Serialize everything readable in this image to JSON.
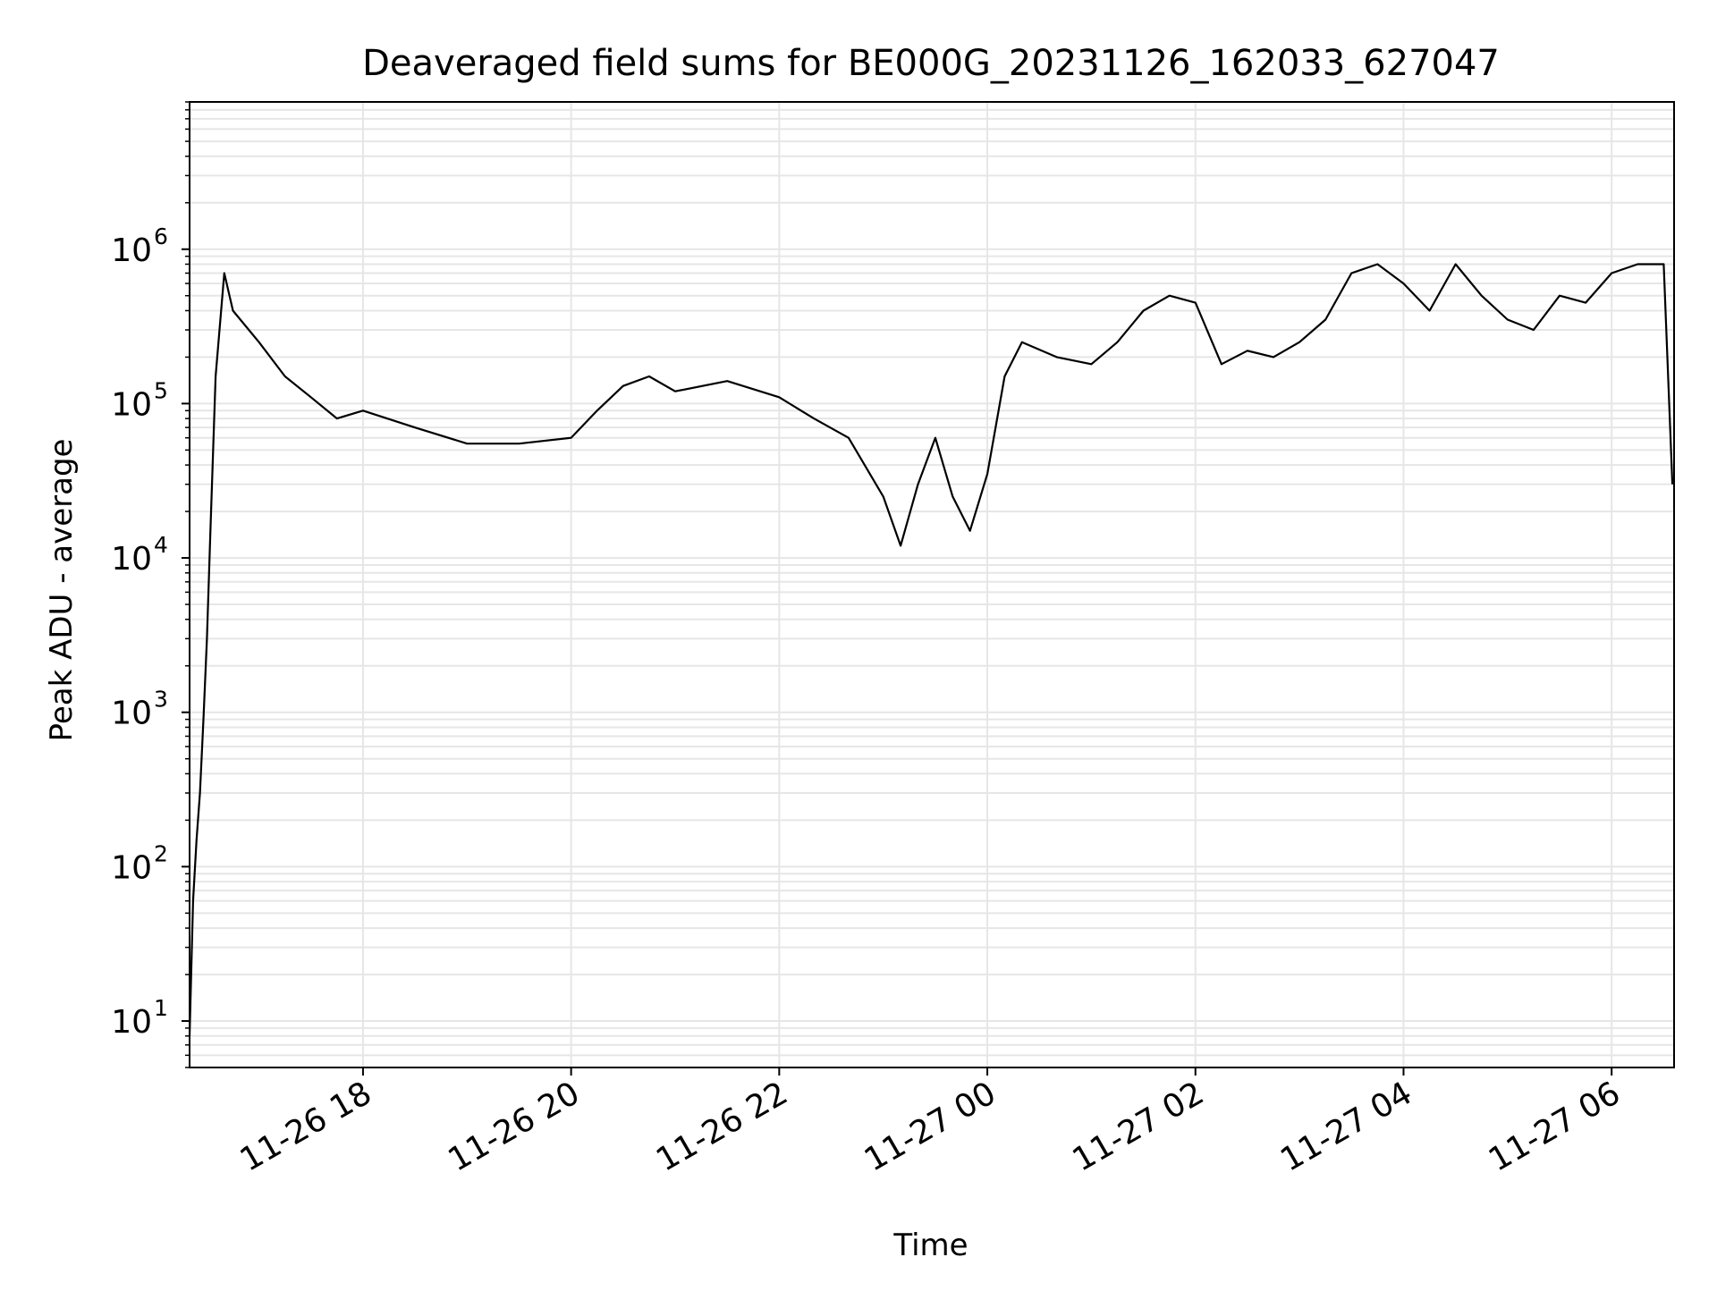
{
  "chart_data": {
    "type": "line",
    "title": "Deaveraged field sums for BE000G_20231126_162033_627047",
    "xlabel": "Time",
    "ylabel": "Peak ADU - average",
    "yscale": "log",
    "grid": true,
    "legend": "none",
    "xlim": [
      "2023-11-26 16:20",
      "2023-11-27 06:36"
    ],
    "ylim": [
      5,
      9000000
    ],
    "x_ticks": [
      {
        "t": "2023-11-26 18:00",
        "label": "11-26 18"
      },
      {
        "t": "2023-11-26 20:00",
        "label": "11-26 20"
      },
      {
        "t": "2023-11-26 22:00",
        "label": "11-26 22"
      },
      {
        "t": "2023-11-27 00:00",
        "label": "11-27 00"
      },
      {
        "t": "2023-11-27 02:00",
        "label": "11-27 02"
      },
      {
        "t": "2023-11-27 04:00",
        "label": "11-27 04"
      },
      {
        "t": "2023-11-27 06:00",
        "label": "11-27 06"
      }
    ],
    "y_ticks": [
      {
        "value": 10,
        "base": "10",
        "exp": "1"
      },
      {
        "value": 100,
        "base": "10",
        "exp": "2"
      },
      {
        "value": 1000,
        "base": "10",
        "exp": "3"
      },
      {
        "value": 10000,
        "base": "10",
        "exp": "4"
      },
      {
        "value": 100000,
        "base": "10",
        "exp": "5"
      },
      {
        "value": 1000000,
        "base": "10",
        "exp": "6"
      }
    ],
    "series": [
      {
        "color": "#000000",
        "points": [
          [
            "2023-11-26 16:20",
            8
          ],
          [
            "2023-11-26 16:22",
            60
          ],
          [
            "2023-11-26 16:24",
            150
          ],
          [
            "2023-11-26 16:26",
            300
          ],
          [
            "2023-11-26 16:28",
            900
          ],
          [
            "2023-11-26 16:30",
            3000
          ],
          [
            "2023-11-26 16:32",
            15000
          ],
          [
            "2023-11-26 16:35",
            150000
          ],
          [
            "2023-11-26 16:40",
            700000
          ],
          [
            "2023-11-26 16:45",
            400000
          ],
          [
            "2023-11-26 17:00",
            250000
          ],
          [
            "2023-11-26 17:15",
            150000
          ],
          [
            "2023-11-26 17:30",
            110000
          ],
          [
            "2023-11-26 17:45",
            80000
          ],
          [
            "2023-11-26 18:00",
            90000
          ],
          [
            "2023-11-26 18:30",
            70000
          ],
          [
            "2023-11-26 19:00",
            55000
          ],
          [
            "2023-11-26 19:30",
            55000
          ],
          [
            "2023-11-26 20:00",
            60000
          ],
          [
            "2023-11-26 20:15",
            90000
          ],
          [
            "2023-11-26 20:30",
            130000
          ],
          [
            "2023-11-26 20:45",
            150000
          ],
          [
            "2023-11-26 21:00",
            120000
          ],
          [
            "2023-11-26 21:30",
            140000
          ],
          [
            "2023-11-26 22:00",
            110000
          ],
          [
            "2023-11-26 22:20",
            80000
          ],
          [
            "2023-11-26 22:40",
            60000
          ],
          [
            "2023-11-26 23:00",
            25000
          ],
          [
            "2023-11-26 23:10",
            12000
          ],
          [
            "2023-11-26 23:20",
            30000
          ],
          [
            "2023-11-26 23:30",
            60000
          ],
          [
            "2023-11-26 23:40",
            25000
          ],
          [
            "2023-11-26 23:50",
            15000
          ],
          [
            "2023-11-27 00:00",
            35000
          ],
          [
            "2023-11-27 00:10",
            150000
          ],
          [
            "2023-11-27 00:20",
            250000
          ],
          [
            "2023-11-27 00:40",
            200000
          ],
          [
            "2023-11-27 01:00",
            180000
          ],
          [
            "2023-11-27 01:15",
            250000
          ],
          [
            "2023-11-27 01:30",
            400000
          ],
          [
            "2023-11-27 01:45",
            500000
          ],
          [
            "2023-11-27 02:00",
            450000
          ],
          [
            "2023-11-27 02:15",
            180000
          ],
          [
            "2023-11-27 02:30",
            220000
          ],
          [
            "2023-11-27 02:45",
            200000
          ],
          [
            "2023-11-27 03:00",
            250000
          ],
          [
            "2023-11-27 03:15",
            350000
          ],
          [
            "2023-11-27 03:30",
            700000
          ],
          [
            "2023-11-27 03:45",
            800000
          ],
          [
            "2023-11-27 04:00",
            600000
          ],
          [
            "2023-11-27 04:15",
            400000
          ],
          [
            "2023-11-27 04:30",
            800000
          ],
          [
            "2023-11-27 04:45",
            500000
          ],
          [
            "2023-11-27 05:00",
            350000
          ],
          [
            "2023-11-27 05:15",
            300000
          ],
          [
            "2023-11-27 05:30",
            500000
          ],
          [
            "2023-11-27 05:45",
            450000
          ],
          [
            "2023-11-27 06:00",
            700000
          ],
          [
            "2023-11-27 06:15",
            800000
          ],
          [
            "2023-11-27 06:30",
            800000
          ],
          [
            "2023-11-27 06:35",
            30000
          ]
        ]
      }
    ]
  }
}
